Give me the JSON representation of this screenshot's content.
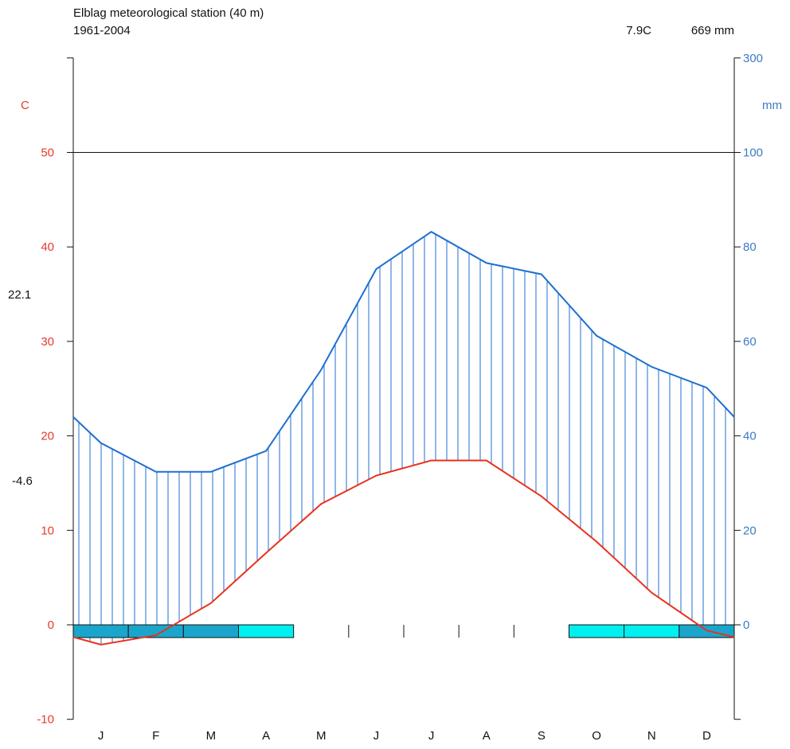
{
  "chart_data": {
    "type": "climate-diagram",
    "title": "Elblag meteorological station (40 m)",
    "subtitle": "1961-2004",
    "mean_temp_label": "7.9C",
    "annual_precip_label": "669 mm",
    "temp_unit_label": "C",
    "precip_unit_label": "mm",
    "max_temp_side_label": "22.1",
    "min_temp_side_label": "-4.6",
    "months": [
      "J",
      "F",
      "M",
      "A",
      "M",
      "J",
      "J",
      "A",
      "S",
      "O",
      "N",
      "D"
    ],
    "temp_axis": {
      "range": [
        -10,
        60
      ],
      "ticks": [
        -10,
        0,
        10,
        20,
        30,
        40,
        50
      ]
    },
    "precip_axis": {
      "ticks": [
        0,
        20,
        40,
        60,
        80,
        100,
        300
      ]
    },
    "temperature": {
      "x": [
        0,
        0.5,
        1.5,
        2.5,
        3.5,
        4.5,
        5.5,
        6.5,
        7.5,
        8.5,
        9.5,
        10.5,
        11.5,
        12
      ],
      "y": [
        -1.3,
        -2.1,
        -1.1,
        2.3,
        7.6,
        12.8,
        15.8,
        17.4,
        17.4,
        13.6,
        8.8,
        3.4,
        -0.6,
        -1.3
      ]
    },
    "precipitation": {
      "x": [
        0,
        0.5,
        1.5,
        2.5,
        3.5,
        4.5,
        5.5,
        6.5,
        7.5,
        8.5,
        9.5,
        10.5,
        11.5,
        12
      ],
      "y": [
        44,
        38.5,
        32.4,
        32.4,
        36.8,
        54,
        75.3,
        83.2,
        76.6,
        74.2,
        61.2,
        54.6,
        50.2,
        44
      ]
    },
    "frost_bar": {
      "months": [
        "J",
        "F",
        "M",
        "A",
        "M",
        "J",
        "J",
        "A",
        "S",
        "O",
        "N",
        "D"
      ],
      "frost": [
        "certain",
        "certain",
        "certain",
        "probable",
        "none",
        "none",
        "none",
        "none",
        "none",
        "probable",
        "probable",
        "certain"
      ]
    },
    "colors": {
      "temperature": "#e8321e",
      "precipitation": "#1f6fd0",
      "frost_certain": "#1aa6cc",
      "frost_probable": "#00f0f0",
      "axis": "#111111"
    }
  }
}
